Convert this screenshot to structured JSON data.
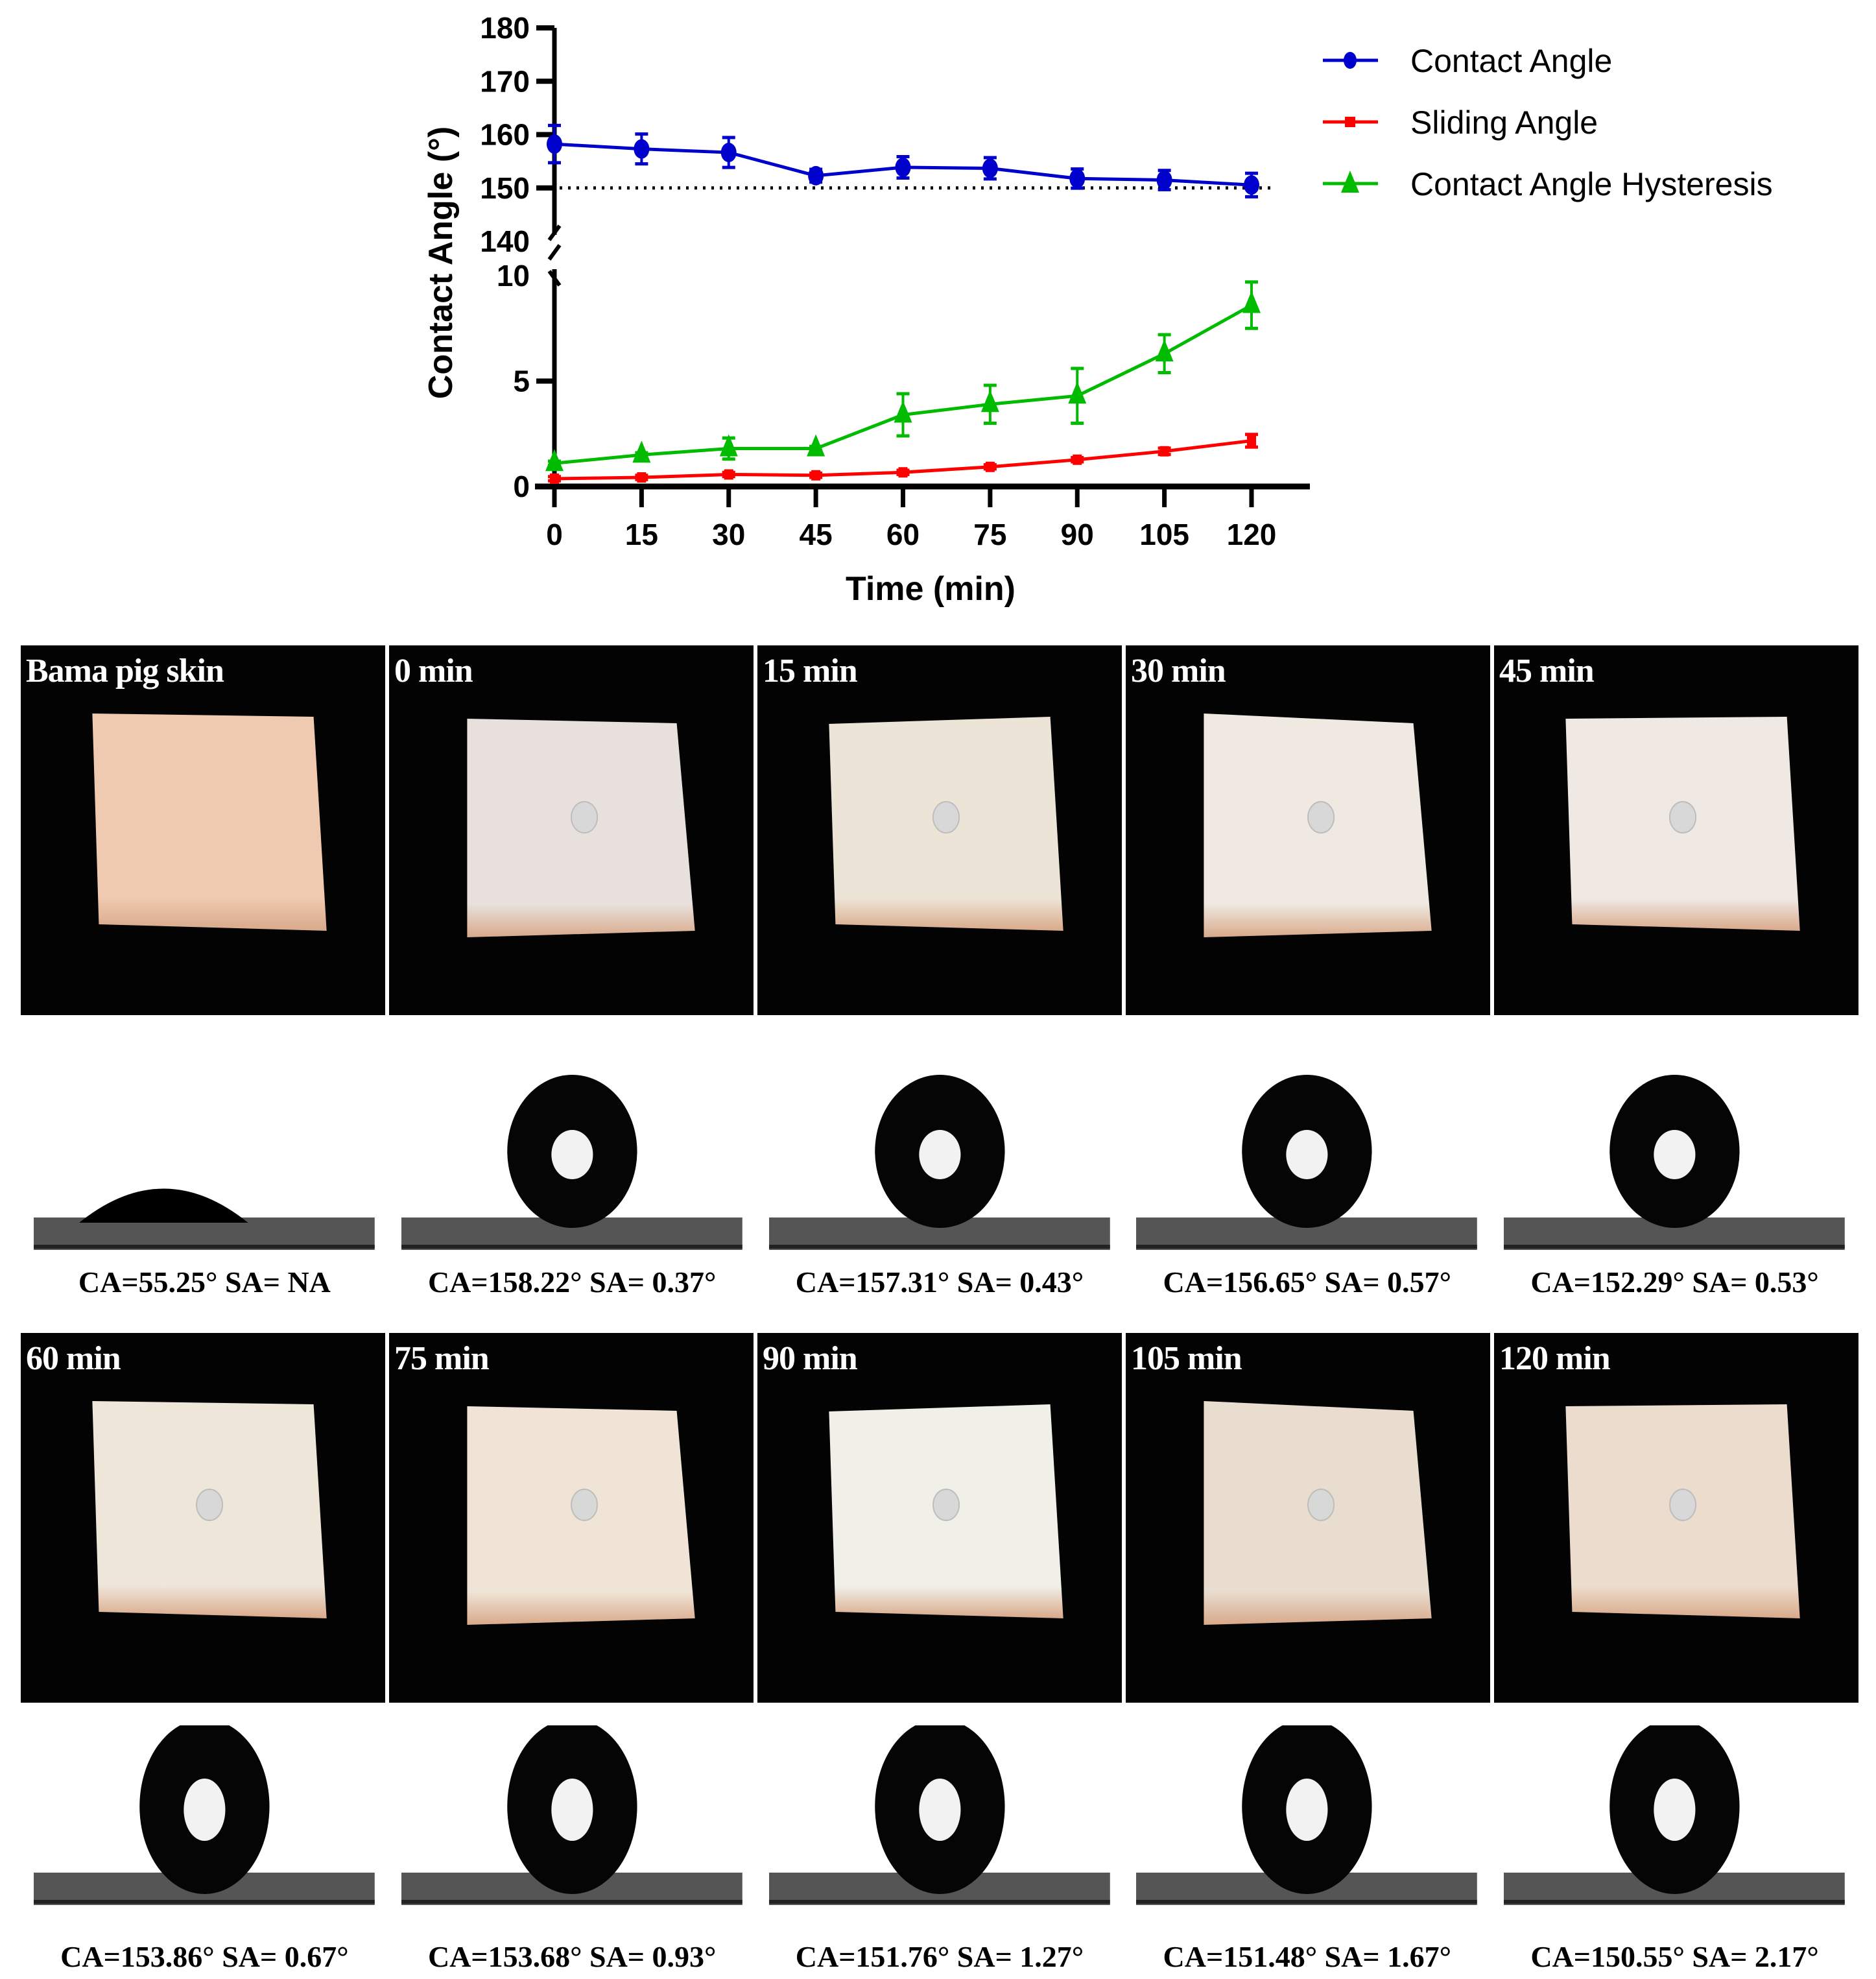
{
  "chart_data": {
    "type": "line",
    "title": "",
    "xlabel": "Time (min)",
    "ylabel": "Contact Angle (°)",
    "x": [
      0,
      15,
      30,
      45,
      60,
      75,
      90,
      105,
      120
    ],
    "x_ticks": [
      "0",
      "15",
      "30",
      "45",
      "60",
      "75",
      "90",
      "105",
      "120"
    ],
    "y_axis_broken": true,
    "y_upper_segment": {
      "range": [
        140,
        180
      ],
      "ticks": [
        "140",
        "150",
        "160",
        "170",
        "180"
      ]
    },
    "y_lower_segment": {
      "range": [
        0,
        10
      ],
      "ticks": [
        "0",
        "5",
        "10"
      ]
    },
    "reference_line": {
      "y": 150,
      "style": "dotted",
      "color": "#000000"
    },
    "legend_position": "upper right",
    "grid": false,
    "series": [
      {
        "name": "Contact Angle",
        "color": "#0000cc",
        "marker": "circle",
        "values": [
          158.22,
          157.31,
          156.65,
          152.29,
          153.86,
          153.68,
          151.76,
          151.48,
          150.55
        ],
        "errors": [
          3.5,
          2.8,
          2.8,
          1.2,
          2.0,
          2.0,
          1.8,
          1.8,
          2.2
        ]
      },
      {
        "name": "Sliding Angle",
        "color": "#ff0000",
        "marker": "square",
        "values": [
          0.37,
          0.43,
          0.57,
          0.53,
          0.67,
          0.93,
          1.27,
          1.67,
          2.17
        ],
        "errors": [
          0.1,
          0.1,
          0.1,
          0.1,
          0.1,
          0.1,
          0.1,
          0.15,
          0.3
        ]
      },
      {
        "name": "Contact Angle Hysteresis",
        "color": "#00bb00",
        "marker": "triangle",
        "values": [
          1.1,
          1.5,
          1.8,
          1.8,
          3.4,
          3.9,
          4.3,
          6.3,
          8.6
        ],
        "errors": [
          0.1,
          0.1,
          0.5,
          0.1,
          1.0,
          0.9,
          1.3,
          0.9,
          1.1
        ]
      }
    ]
  },
  "photo_panels": {
    "row1": [
      {
        "label": "Bama pig skin"
      },
      {
        "label": "0 min"
      },
      {
        "label": "15 min"
      },
      {
        "label": "30 min"
      },
      {
        "label": "45 min"
      }
    ],
    "row2": [
      {
        "label": "60 min"
      },
      {
        "label": "75 min"
      },
      {
        "label": "90 min"
      },
      {
        "label": "105 min"
      },
      {
        "label": "120 min"
      }
    ]
  },
  "droplet_panels": {
    "row1": [
      {
        "caption": "CA=55.25° SA= NA",
        "shape": "flat"
      },
      {
        "caption": "CA=158.22° SA= 0.37°",
        "shape": "sphere"
      },
      {
        "caption": "CA=157.31° SA= 0.43°",
        "shape": "sphere"
      },
      {
        "caption": "CA=156.65° SA= 0.57°",
        "shape": "sphere"
      },
      {
        "caption": "CA=152.29° SA= 0.53°",
        "shape": "sphere"
      }
    ],
    "row2": [
      {
        "caption": "CA=153.86° SA= 0.67°",
        "shape": "sphere"
      },
      {
        "caption": "CA=153.68° SA= 0.93°",
        "shape": "sphere"
      },
      {
        "caption": "CA=151.76° SA= 1.27°",
        "shape": "sphere"
      },
      {
        "caption": "CA=151.48° SA= 1.67°",
        "shape": "sphere"
      },
      {
        "caption": "CA=150.55° SA= 2.17°",
        "shape": "sphere"
      }
    ]
  }
}
